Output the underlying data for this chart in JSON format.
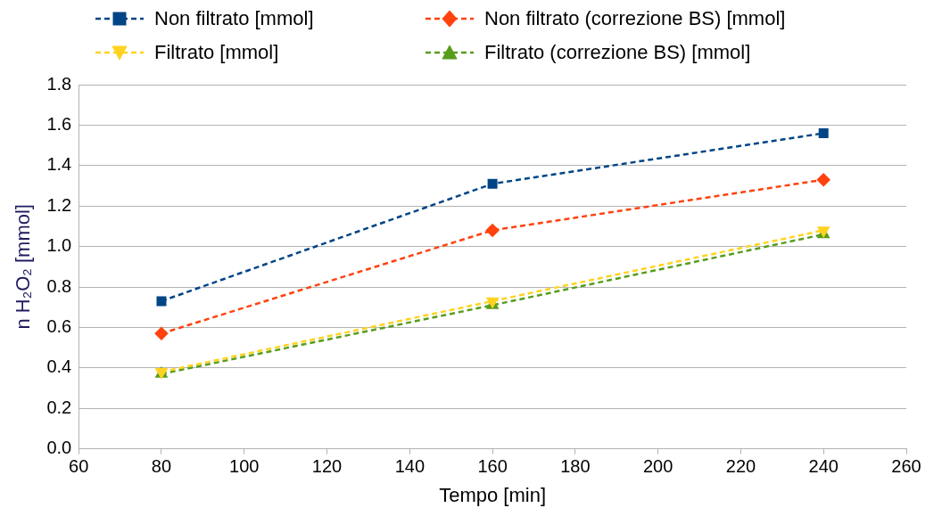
{
  "chart_data": {
    "type": "line",
    "xlabel": "Tempo [min]",
    "ylabel": "n H₂O₂ [mmol]",
    "x": [
      80,
      160,
      240
    ],
    "series": [
      {
        "name": "Non filtrato [mmol]",
        "color": "#004586",
        "marker": "square",
        "values": [
          0.73,
          1.31,
          1.56
        ]
      },
      {
        "name": "Non filtrato (correzione BS) [mmol]",
        "color": "#ff420e",
        "marker": "diamond",
        "values": [
          0.57,
          1.08,
          1.33
        ]
      },
      {
        "name": "Filtrato [mmol]",
        "color": "#ffd320",
        "marker": "triangle-down",
        "values": [
          0.38,
          0.73,
          1.08
        ]
      },
      {
        "name": "Filtrato (correzione BS) [mmol]",
        "color": "#579d1c",
        "marker": "triangle",
        "values": [
          0.37,
          0.71,
          1.06
        ]
      }
    ],
    "xlim": [
      60,
      260
    ],
    "xticks": [
      60,
      80,
      100,
      120,
      140,
      160,
      180,
      200,
      220,
      240,
      260
    ],
    "ylim": [
      0,
      1.8
    ],
    "yticks": [
      {
        "value": 0,
        "label": "0.0"
      },
      0.2,
      0.4,
      0.6,
      0.8,
      {
        "value": 1,
        "label": "1.0"
      },
      1.2,
      1.4,
      1.6,
      1.8
    ],
    "grid": "y",
    "legend": "top",
    "line_style": "dashed"
  }
}
